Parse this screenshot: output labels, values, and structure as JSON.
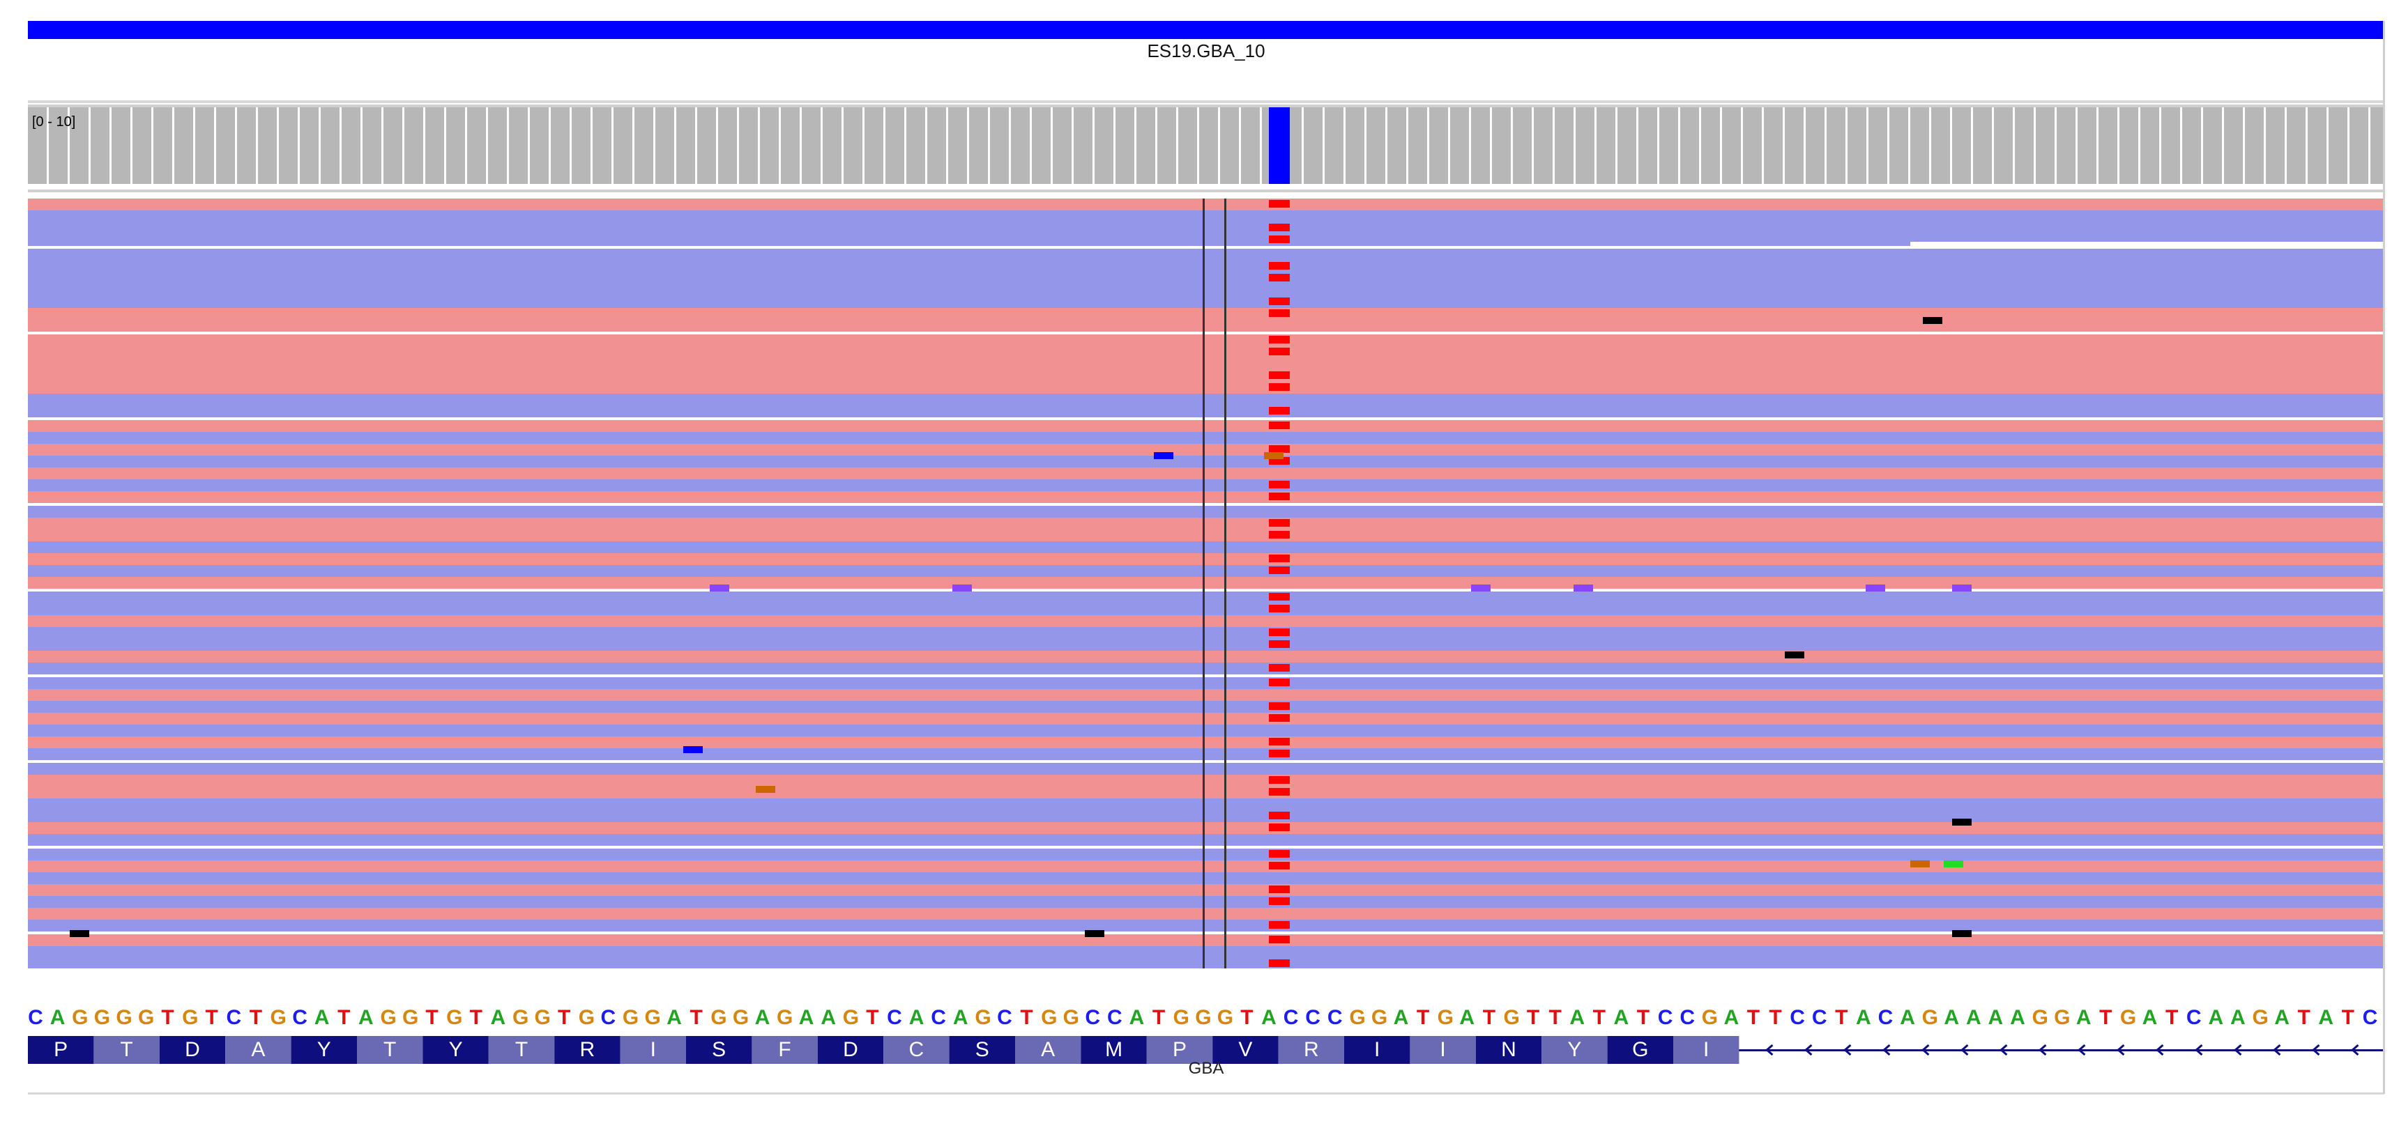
{
  "sample": {
    "name": "ES19.GBA_10"
  },
  "coverage": {
    "range_label": "[0 - 10]",
    "mismatch_column": 0.5
  },
  "reference_sequence": "CAGGGGTGTCTGCATAGGTGTAGGTGCGGATGGAGAAGTCACAGCTGGCCATGGGTACCCGGATGATGTTATATCCGATTCCTACAGAAAAGGATGATCAAGATATC",
  "gene": {
    "name": "GBA",
    "amino_acids": [
      "P",
      "T",
      "D",
      "A",
      "Y",
      "T",
      "Y",
      "T",
      "R",
      "I",
      "S",
      "F",
      "D",
      "C",
      "S",
      "A",
      "M",
      "P",
      "V",
      "R",
      "I",
      "I",
      "N",
      "Y",
      "G",
      "I"
    ],
    "intron_direction": "minus-strand"
  },
  "colors": {
    "forward_read": "#9496ea",
    "reverse_read": "#f29192",
    "mismatch": "#ff0000",
    "sample_bar": "#0000ff",
    "coverage_bar": "#b7b7b7",
    "coverage_variant": "#0000ff",
    "gene_box_dark": "#0e0e7e",
    "gene_box_light": "#6a6ab4",
    "base_A": "#21a421",
    "base_C": "#1c1cf2",
    "base_G": "#d6860e",
    "base_T": "#e01010"
  }
}
